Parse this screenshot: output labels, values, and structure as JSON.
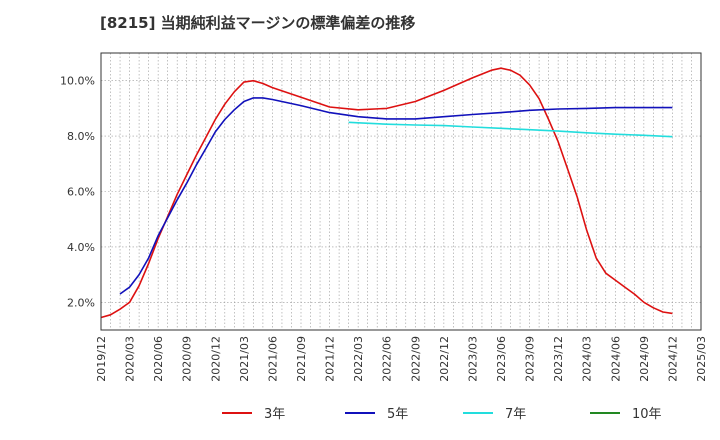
{
  "chart_data": {
    "type": "line",
    "title": "[8215]  当期純利益マージンの標準偏差の推移",
    "xlabel": "",
    "ylabel": "",
    "x_ticks": [
      "2019/12",
      "2020/03",
      "2020/06",
      "2020/09",
      "2020/12",
      "2021/03",
      "2021/06",
      "2021/09",
      "2021/12",
      "2022/03",
      "2022/06",
      "2022/09",
      "2022/12",
      "2023/03",
      "2023/06",
      "2023/09",
      "2023/12",
      "2024/03",
      "2024/06",
      "2024/09",
      "2024/12",
      "2025/03"
    ],
    "y_ticks": [
      {
        "value": 2.0,
        "label": "2.0%"
      },
      {
        "value": 4.0,
        "label": "4.0%"
      },
      {
        "value": 6.0,
        "label": "6.0%"
      },
      {
        "value": 8.0,
        "label": "8.0%"
      },
      {
        "value": 10.0,
        "label": "10.0%"
      }
    ],
    "ylim": [
      1.0,
      11.0
    ],
    "grid": true,
    "legend_position": "bottom",
    "series": [
      {
        "name": "3年",
        "color": "#dd1111",
        "points": [
          [
            "2019/12",
            1.45
          ],
          [
            "2020/01",
            1.55
          ],
          [
            "2020/02",
            1.75
          ],
          [
            "2020/03",
            2.0
          ],
          [
            "2020/04",
            2.6
          ],
          [
            "2020/05",
            3.4
          ],
          [
            "2020/06",
            4.3
          ],
          [
            "2020/07",
            5.1
          ],
          [
            "2020/08",
            5.9
          ],
          [
            "2020/09",
            6.6
          ],
          [
            "2020/10",
            7.3
          ],
          [
            "2020/11",
            7.95
          ],
          [
            "2020/12",
            8.6
          ],
          [
            "2021/01",
            9.15
          ],
          [
            "2021/02",
            9.6
          ],
          [
            "2021/03",
            9.95
          ],
          [
            "2021/04",
            10.0
          ],
          [
            "2021/05",
            9.9
          ],
          [
            "2021/06",
            9.75
          ],
          [
            "2021/09",
            9.4
          ],
          [
            "2021/12",
            9.05
          ],
          [
            "2022/03",
            8.95
          ],
          [
            "2022/06",
            9.0
          ],
          [
            "2022/09",
            9.25
          ],
          [
            "2022/12",
            9.65
          ],
          [
            "2023/03",
            10.1
          ],
          [
            "2023/05",
            10.38
          ],
          [
            "2023/06",
            10.45
          ],
          [
            "2023/07",
            10.38
          ],
          [
            "2023/08",
            10.2
          ],
          [
            "2023/09",
            9.85
          ],
          [
            "2023/10",
            9.35
          ],
          [
            "2023/11",
            8.6
          ],
          [
            "2023/12",
            7.8
          ],
          [
            "2024/01",
            6.8
          ],
          [
            "2024/02",
            5.8
          ],
          [
            "2024/03",
            4.6
          ],
          [
            "2024/04",
            3.6
          ],
          [
            "2024/05",
            3.05
          ],
          [
            "2024/06",
            2.8
          ],
          [
            "2024/07",
            2.55
          ],
          [
            "2024/08",
            2.3
          ],
          [
            "2024/09",
            2.0
          ],
          [
            "2024/10",
            1.8
          ],
          [
            "2024/11",
            1.65
          ],
          [
            "2024/12",
            1.6
          ]
        ]
      },
      {
        "name": "5年",
        "color": "#1111bb",
        "points": [
          [
            "2020/02",
            2.3
          ],
          [
            "2020/03",
            2.55
          ],
          [
            "2020/04",
            3.0
          ],
          [
            "2020/05",
            3.6
          ],
          [
            "2020/06",
            4.4
          ],
          [
            "2020/07",
            5.05
          ],
          [
            "2020/08",
            5.7
          ],
          [
            "2020/09",
            6.3
          ],
          [
            "2020/10",
            6.95
          ],
          [
            "2020/11",
            7.55
          ],
          [
            "2020/12",
            8.15
          ],
          [
            "2021/01",
            8.6
          ],
          [
            "2021/02",
            8.95
          ],
          [
            "2021/03",
            9.25
          ],
          [
            "2021/04",
            9.38
          ],
          [
            "2021/05",
            9.38
          ],
          [
            "2021/06",
            9.32
          ],
          [
            "2021/09",
            9.1
          ],
          [
            "2021/12",
            8.85
          ],
          [
            "2022/03",
            8.7
          ],
          [
            "2022/06",
            8.62
          ],
          [
            "2022/09",
            8.62
          ],
          [
            "2022/12",
            8.7
          ],
          [
            "2023/03",
            8.78
          ],
          [
            "2023/06",
            8.85
          ],
          [
            "2023/09",
            8.93
          ],
          [
            "2023/12",
            8.98
          ],
          [
            "2024/03",
            9.0
          ],
          [
            "2024/06",
            9.03
          ],
          [
            "2024/09",
            9.03
          ],
          [
            "2024/12",
            9.03
          ]
        ]
      },
      {
        "name": "7年",
        "color": "#22dddd",
        "points": [
          [
            "2022/02",
            8.5
          ],
          [
            "2022/03",
            8.48
          ],
          [
            "2022/06",
            8.43
          ],
          [
            "2022/09",
            8.4
          ],
          [
            "2022/12",
            8.38
          ],
          [
            "2023/03",
            8.33
          ],
          [
            "2023/06",
            8.28
          ],
          [
            "2023/09",
            8.23
          ],
          [
            "2023/12",
            8.18
          ],
          [
            "2024/03",
            8.12
          ],
          [
            "2024/06",
            8.07
          ],
          [
            "2024/09",
            8.03
          ],
          [
            "2024/12",
            7.98
          ]
        ]
      },
      {
        "name": "10年",
        "color": "#228822",
        "points": []
      }
    ]
  }
}
